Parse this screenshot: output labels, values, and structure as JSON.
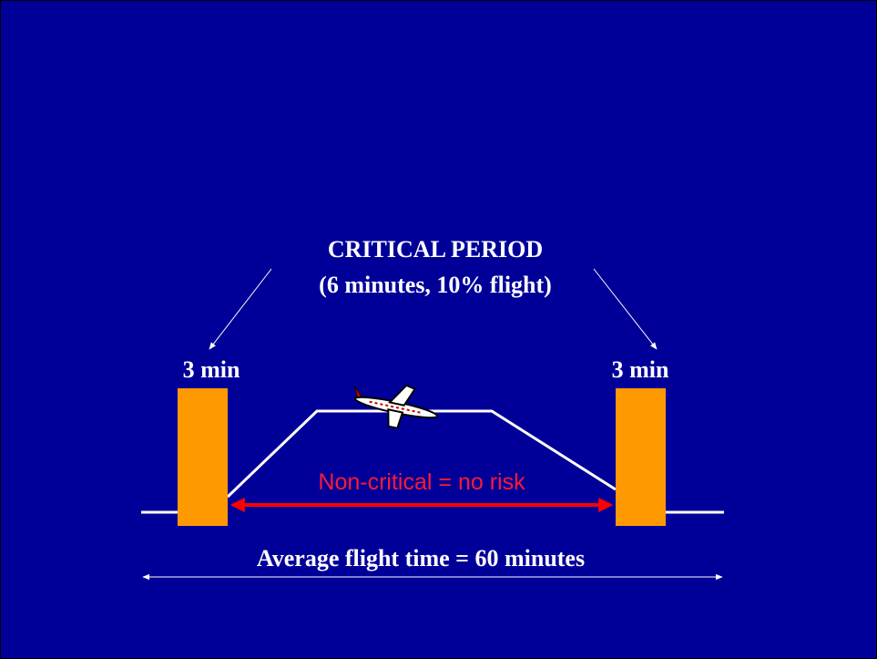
{
  "title": "CRITICAL PERIOD",
  "subtitle": "(6 minutes, 10% flight)",
  "left_label": "3 min",
  "right_label": "3 min",
  "middle_label": "Non-critical = no risk",
  "bottom_label": "Average flight time = 60 minutes"
}
